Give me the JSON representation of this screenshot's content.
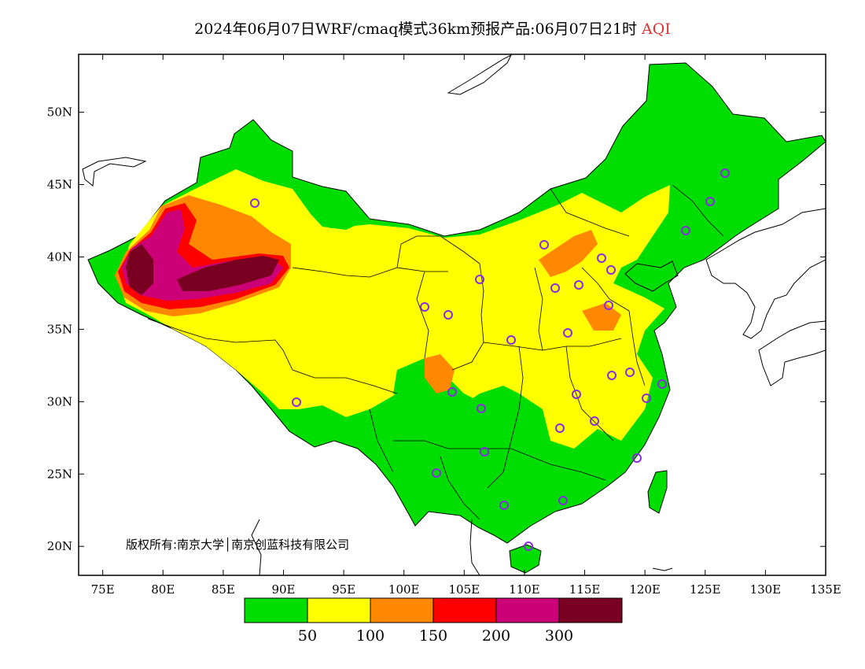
{
  "title": {
    "text": "2024年06月07日WRF/cmaq模式36km预报产品:06月07日21时",
    "variable": "AQI"
  },
  "map": {
    "lon_range": [
      73,
      135
    ],
    "lat_range": [
      18,
      54
    ],
    "lat_ticks": [
      "20N",
      "25N",
      "30N",
      "35N",
      "40N",
      "45N",
      "50N"
    ],
    "lon_ticks": [
      "75E",
      "80E",
      "85E",
      "90E",
      "95E",
      "100E",
      "105E",
      "110E",
      "115E",
      "120E",
      "125E",
      "130E",
      "135E"
    ],
    "copyright": "版权所有:南京大学│南京创蓝科技有限公司",
    "fill_colors": {
      "land_base": "#00dd00",
      "moderate": "#ffff00",
      "sensitive": "#ff8800",
      "unhealthy": "#ff0000",
      "very_unhealthy": "#cc0077",
      "hazardous": "#7a0022"
    },
    "station_marker_color": "#8a2be2"
  },
  "colorbar": {
    "colors": [
      "#00dd00",
      "#ffff00",
      "#ff8800",
      "#ff0000",
      "#cc0077",
      "#7a0022"
    ],
    "labels": [
      "50",
      "100",
      "150",
      "200",
      "300"
    ]
  }
}
